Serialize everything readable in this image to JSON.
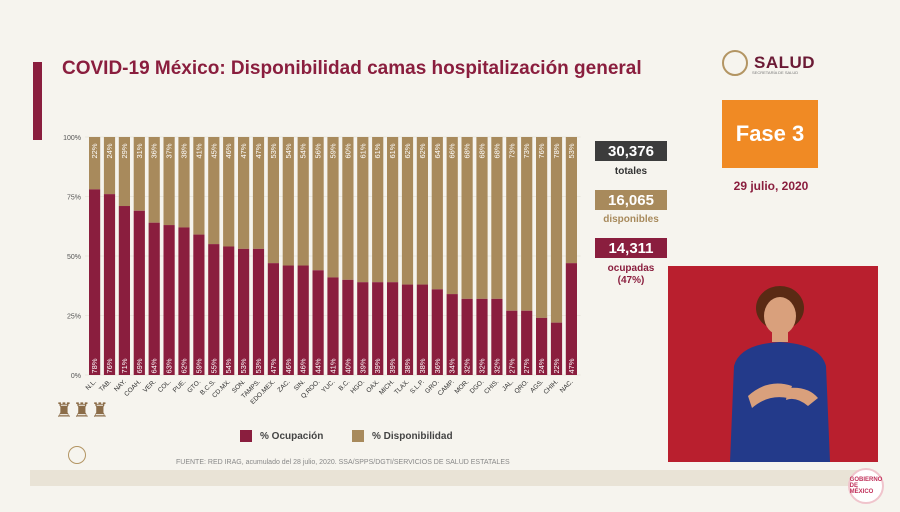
{
  "title": "COVID-19 México: Disponibilidad camas hospitalización general",
  "logo": {
    "text": "SALUD",
    "subtitle": "SECRETARÍA DE SALUD",
    "icon": "mexico-seal-icon"
  },
  "phase_badge": "Fase 3",
  "date": "29 julio, 2020",
  "stats": {
    "total_value": "30,376",
    "total_label": "totales",
    "available_value": "16,065",
    "available_label": "disponibles",
    "occupied_value": "14,311",
    "occupied_label": "ocupadas",
    "occupied_pct": "(47%)"
  },
  "legend": {
    "occupancy": "% Ocupación",
    "availability": "% Disponibilidad"
  },
  "source": "FUENTE: RED IRAG, acumulado del 28 julio, 2020.  SSA/SPPS/DGTI/SERVICIOS DE SALUD ESTATALES",
  "footer_badge": "GOBIERNO DE MÉXICO",
  "colors": {
    "occupancy": "#8a1e3e",
    "availability": "#a88a5c",
    "accent": "#8a1e3e",
    "phase": "#f08a24"
  },
  "chart_data": {
    "type": "bar",
    "stacked": true,
    "categories": [
      "N.L.",
      "TAB.",
      "NAY.",
      "COAH.",
      "VER.",
      "COL.",
      "PUE.",
      "GTO.",
      "B.C.S.",
      "CD.MX.",
      "SON.",
      "TAMPS.",
      "EDO.MEX.",
      "ZAC.",
      "SIN.",
      "Q.ROO.",
      "YUC.",
      "B.C.",
      "HGO.",
      "OAX.",
      "MICH.",
      "TLAX.",
      "S.L.P.",
      "GRO.",
      "CAMP.",
      "MOR.",
      "DGO.",
      "CHIS.",
      "JAL.",
      "QRO.",
      "AGS.",
      "CHIH.",
      "NAC."
    ],
    "series": [
      {
        "name": "% Ocupación",
        "values": [
          78,
          76,
          71,
          69,
          64,
          63,
          62,
          59,
          55,
          54,
          53,
          53,
          47,
          46,
          46,
          44,
          41,
          40,
          39,
          39,
          39,
          38,
          38,
          36,
          34,
          32,
          32,
          32,
          27,
          27,
          24,
          22,
          47
        ]
      },
      {
        "name": "% Disponibilidad",
        "values": [
          22,
          24,
          29,
          31,
          36,
          37,
          38,
          41,
          45,
          46,
          47,
          47,
          53,
          54,
          54,
          56,
          59,
          60,
          61,
          61,
          61,
          62,
          62,
          64,
          66,
          68,
          68,
          68,
          73,
          73,
          76,
          78,
          53
        ]
      }
    ],
    "value_labels_occupancy": [
      "78%",
      "76%",
      "71%",
      "69%",
      "64%",
      "63%",
      "62%",
      "59%",
      "55%",
      "54%",
      "53%",
      "53%",
      "47%",
      "46%",
      "46%",
      "44%",
      "41%",
      "40%",
      "39%",
      "39%",
      "39%",
      "38%",
      "38%",
      "36%",
      "34%",
      "32%",
      "32%",
      "32%",
      "27%",
      "27%",
      "24%",
      "22%",
      "47%"
    ],
    "value_labels_availability": [
      "22%",
      "24%",
      "29%",
      "31%",
      "36%",
      "37%",
      "38%",
      "41%",
      "45%",
      "46%",
      "47%",
      "47%",
      "53%",
      "54%",
      "54%",
      "56%",
      "59%",
      "60%",
      "61%",
      "61%",
      "61%",
      "62%",
      "62%",
      "64%",
      "66%",
      "68%",
      "68%",
      "68%",
      "73%",
      "73%",
      "76%",
      "78%",
      "53%"
    ],
    "yticks": [
      "0%",
      "25%",
      "50%",
      "75%",
      "100%"
    ],
    "ylim": [
      0,
      100
    ],
    "legend_position": "bottom"
  }
}
